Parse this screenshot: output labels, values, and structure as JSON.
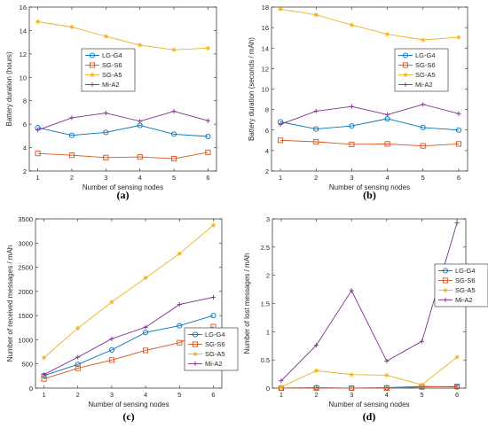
{
  "chart_data": [
    {
      "panel": "(a)",
      "type": "line",
      "x": [
        1,
        2,
        3,
        4,
        5,
        6
      ],
      "xlabel": "Number of sensing nodes",
      "ylabel": "Battery duration (hours)",
      "ylim": [
        2,
        16
      ],
      "yticks": [
        2,
        4,
        6,
        8,
        10,
        12,
        14,
        16
      ],
      "xticks": [
        1,
        2,
        3,
        4,
        5,
        6
      ],
      "legend": "center-right",
      "series": [
        {
          "name": "LG-G4",
          "color": "#0072BD",
          "marker": "circle",
          "values": [
            5.7,
            5.05,
            5.3,
            5.9,
            5.15,
            4.95
          ]
        },
        {
          "name": "SG-S6",
          "color": "#D95319",
          "marker": "square",
          "values": [
            3.5,
            3.35,
            3.15,
            3.2,
            3.05,
            3.6
          ]
        },
        {
          "name": "SG-A5",
          "color": "#EDB120",
          "marker": "star",
          "values": [
            14.75,
            14.3,
            13.5,
            12.75,
            12.35,
            12.5
          ]
        },
        {
          "name": "Mi-A2",
          "color": "#7E2F8E",
          "marker": "plus",
          "values": [
            5.5,
            6.55,
            6.95,
            6.25,
            7.1,
            6.3
          ]
        }
      ]
    },
    {
      "panel": "(b)",
      "type": "line",
      "x": [
        1,
        2,
        3,
        4,
        5,
        6
      ],
      "xlabel": "Number of sensing nodes",
      "ylabel": "Battery duration (seconds / mAh)",
      "ylim": [
        2,
        18
      ],
      "yticks": [
        2,
        4,
        6,
        8,
        10,
        12,
        14,
        16,
        18
      ],
      "xticks": [
        1,
        2,
        3,
        4,
        5,
        6
      ],
      "legend": "center-right",
      "series": [
        {
          "name": "LG-G4",
          "color": "#0072BD",
          "marker": "circle",
          "values": [
            6.8,
            6.1,
            6.4,
            7.1,
            6.25,
            6.0
          ]
        },
        {
          "name": "SG-S6",
          "color": "#D95319",
          "marker": "square",
          "values": [
            5.0,
            4.85,
            4.6,
            4.65,
            4.45,
            4.65
          ]
        },
        {
          "name": "SG-A5",
          "color": "#EDB120",
          "marker": "star",
          "values": [
            17.8,
            17.25,
            16.25,
            15.35,
            14.8,
            15.05
          ]
        },
        {
          "name": "Mi-A2",
          "color": "#7E2F8E",
          "marker": "plus",
          "values": [
            6.55,
            7.85,
            8.3,
            7.5,
            8.5,
            7.6
          ]
        }
      ]
    },
    {
      "panel": "(c)",
      "type": "line",
      "x": [
        1,
        2,
        3,
        4,
        5,
        6
      ],
      "xlabel": "Number of sensing nodes",
      "ylabel": "Number of received messages / mAh",
      "ylim": [
        0,
        3500
      ],
      "yticks": [
        0,
        500,
        1000,
        1500,
        2000,
        2500,
        3000,
        3500
      ],
      "xticks": [
        1,
        2,
        3,
        4,
        5,
        6
      ],
      "legend": "bottom-right",
      "series": [
        {
          "name": "LG-G4",
          "color": "#0072BD",
          "marker": "circle",
          "values": [
            260,
            490,
            790,
            1150,
            1290,
            1500
          ]
        },
        {
          "name": "SG-S6",
          "color": "#D95319",
          "marker": "square",
          "values": [
            190,
            410,
            580,
            780,
            940,
            1270
          ]
        },
        {
          "name": "SG-A5",
          "color": "#EDB120",
          "marker": "star",
          "values": [
            630,
            1240,
            1780,
            2280,
            2780,
            3370
          ]
        },
        {
          "name": "Mi-A2",
          "color": "#7E2F8E",
          "marker": "plus",
          "values": [
            280,
            640,
            1020,
            1260,
            1730,
            1880
          ]
        }
      ]
    },
    {
      "panel": "(d)",
      "type": "line",
      "x": [
        1,
        2,
        3,
        4,
        5,
        6
      ],
      "xlabel": "Number of sensing nodes",
      "ylabel": "Number of lost messages / mAh",
      "ylim": [
        0,
        3
      ],
      "yticks": [
        0,
        0.5,
        1,
        1.5,
        2,
        2.5,
        3
      ],
      "xticks": [
        1,
        2,
        3,
        4,
        5,
        6
      ],
      "legend": "center-right",
      "series": [
        {
          "name": "LG-G4",
          "color": "#0072BD",
          "marker": "circle",
          "values": [
            0.0,
            0.01,
            0.0,
            0.01,
            0.03,
            0.02
          ]
        },
        {
          "name": "SG-S6",
          "color": "#D95319",
          "marker": "square",
          "values": [
            0.0,
            0.0,
            0.0,
            0.0,
            0.02,
            0.03
          ]
        },
        {
          "name": "SG-A5",
          "color": "#EDB120",
          "marker": "star",
          "values": [
            0.02,
            0.31,
            0.24,
            0.23,
            0.06,
            0.55
          ]
        },
        {
          "name": "Mi-A2",
          "color": "#7E2F8E",
          "marker": "plus",
          "values": [
            0.13,
            0.76,
            1.73,
            0.48,
            0.83,
            2.93
          ]
        }
      ]
    }
  ]
}
